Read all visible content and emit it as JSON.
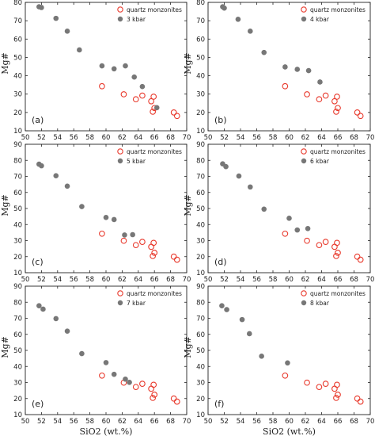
{
  "figure": {
    "colors": {
      "measured": "#e8392c",
      "model": "#777777",
      "axis": "#222222"
    }
  },
  "chart_data": [
    {
      "type": "scatter",
      "panel_label": "(a)",
      "xlim": [
        50,
        70
      ],
      "ylim": [
        10,
        80
      ],
      "xticks": [
        "50",
        "52",
        "54",
        "56",
        "58",
        "60",
        "62",
        "64",
        "66",
        "68",
        "70"
      ],
      "yticks": [
        "10",
        "20",
        "30",
        "40",
        "50",
        "60",
        "70",
        "80"
      ],
      "xlabel": "",
      "ylabel": "Mg#",
      "legend_position": "top-right",
      "series": [
        {
          "name": "quartz monzonites",
          "marker": "open-circle",
          "x": [
            59.5,
            62.2,
            63.7,
            64.5,
            65.6,
            65.9,
            65.8,
            66.0,
            68.4,
            68.8
          ],
          "y": [
            34.3,
            29.9,
            27.2,
            29.2,
            26.1,
            28.6,
            20.4,
            22.4,
            20.0,
            18.1
          ]
        },
        {
          "name": "3 kbar",
          "marker": "filled-circle",
          "x": [
            51.7,
            52.0,
            53.8,
            55.2,
            56.7,
            59.5,
            61.0,
            62.4,
            63.5,
            64.5,
            66.3
          ],
          "y": [
            77.6,
            77.2,
            71.3,
            64.3,
            54.1,
            45.4,
            43.8,
            45.4,
            39.3,
            34.1,
            22.6
          ]
        }
      ]
    },
    {
      "type": "scatter",
      "panel_label": "(b)",
      "xlim": [
        50,
        70
      ],
      "ylim": [
        10,
        80
      ],
      "xticks": [
        "50",
        "52",
        "54",
        "56",
        "58",
        "60",
        "62",
        "64",
        "66",
        "68",
        "70"
      ],
      "yticks": [
        "10",
        "20",
        "30",
        "40",
        "50",
        "60",
        "70",
        "80"
      ],
      "xlabel": "",
      "ylabel": "Mg#",
      "legend_position": "top-right",
      "series": [
        {
          "name": "quartz monzonites",
          "marker": "open-circle",
          "x": [
            59.5,
            62.2,
            63.7,
            64.5,
            65.6,
            65.9,
            65.8,
            66.0,
            68.4,
            68.8
          ],
          "y": [
            34.3,
            29.9,
            27.2,
            29.2,
            26.1,
            28.6,
            20.4,
            22.4,
            20.0,
            18.1
          ]
        },
        {
          "name": "4 kbar",
          "marker": "filled-circle",
          "x": [
            51.8,
            52.0,
            53.7,
            55.2,
            56.9,
            59.5,
            61.0,
            62.4,
            63.8
          ],
          "y": [
            77.6,
            76.9,
            70.8,
            64.3,
            52.7,
            44.8,
            43.5,
            42.8,
            36.6
          ]
        }
      ]
    },
    {
      "type": "scatter",
      "panel_label": "(c)",
      "xlim": [
        50,
        70
      ],
      "ylim": [
        10,
        90
      ],
      "xticks": [
        "50",
        "52",
        "54",
        "56",
        "58",
        "60",
        "62",
        "64",
        "66",
        "68",
        "70"
      ],
      "yticks": [
        "10",
        "20",
        "30",
        "40",
        "50",
        "60",
        "70",
        "80",
        "90"
      ],
      "xlabel": "",
      "ylabel": "Mg#",
      "legend_position": "top-right",
      "series": [
        {
          "name": "quartz monzonites",
          "marker": "open-circle",
          "x": [
            59.5,
            62.2,
            63.7,
            64.5,
            65.6,
            65.9,
            65.8,
            66.0,
            68.4,
            68.8
          ],
          "y": [
            34.3,
            29.9,
            27.2,
            29.2,
            26.1,
            28.6,
            20.4,
            22.4,
            20.0,
            18.1
          ]
        },
        {
          "name": "5 kbar",
          "marker": "filled-circle",
          "x": [
            51.7,
            52.0,
            53.8,
            55.2,
            57.0,
            60.0,
            61.0,
            62.3,
            63.3
          ],
          "y": [
            77.6,
            76.6,
            70.4,
            63.9,
            51.2,
            44.4,
            43.1,
            33.5,
            33.7
          ]
        }
      ]
    },
    {
      "type": "scatter",
      "panel_label": "(d)",
      "xlim": [
        50,
        70
      ],
      "ylim": [
        10,
        90
      ],
      "xticks": [
        "50",
        "52",
        "54",
        "56",
        "58",
        "60",
        "62",
        "64",
        "66",
        "68",
        "70"
      ],
      "yticks": [
        "10",
        "20",
        "30",
        "40",
        "50",
        "60",
        "70",
        "80",
        "90"
      ],
      "xlabel": "",
      "ylabel": "Mg#",
      "legend_position": "top-right",
      "series": [
        {
          "name": "quartz monzonites",
          "marker": "open-circle",
          "x": [
            59.5,
            62.2,
            63.7,
            64.5,
            65.6,
            65.9,
            65.8,
            66.0,
            68.4,
            68.8
          ],
          "y": [
            34.3,
            29.9,
            27.2,
            29.2,
            26.1,
            28.6,
            20.4,
            22.4,
            20.0,
            18.1
          ]
        },
        {
          "name": "6 kbar",
          "marker": "filled-circle",
          "x": [
            51.8,
            52.2,
            53.8,
            55.2,
            56.9,
            60.0,
            61.0,
            62.3
          ],
          "y": [
            77.8,
            76.1,
            70.2,
            63.4,
            49.6,
            43.9,
            36.6,
            37.5
          ]
        }
      ]
    },
    {
      "type": "scatter",
      "panel_label": "(e)",
      "xlim": [
        50,
        70
      ],
      "ylim": [
        10,
        90
      ],
      "xticks": [
        "50",
        "52",
        "54",
        "56",
        "58",
        "60",
        "62",
        "64",
        "66",
        "68",
        "70"
      ],
      "yticks": [
        "10",
        "20",
        "30",
        "40",
        "50",
        "60",
        "70",
        "80",
        "90"
      ],
      "xlabel": "SiO2 (wt.%)",
      "ylabel": "Mg#",
      "legend_position": "top-right",
      "series": [
        {
          "name": "quartz monzonites",
          "marker": "open-circle",
          "x": [
            59.5,
            62.2,
            63.7,
            64.5,
            65.6,
            65.9,
            65.8,
            66.0,
            68.4,
            68.8
          ],
          "y": [
            34.3,
            29.9,
            27.2,
            29.2,
            26.1,
            28.6,
            20.4,
            22.4,
            20.0,
            18.1
          ]
        },
        {
          "name": "7 kbar",
          "marker": "filled-circle",
          "x": [
            51.7,
            52.2,
            53.8,
            55.2,
            57.0,
            60.0,
            61.0,
            62.4,
            62.9
          ],
          "y": [
            77.8,
            75.7,
            69.8,
            62.0,
            48.0,
            42.4,
            35.1,
            32.1,
            30.1
          ]
        }
      ]
    },
    {
      "type": "scatter",
      "panel_label": "(f)",
      "xlim": [
        50,
        70
      ],
      "ylim": [
        10,
        90
      ],
      "xticks": [
        "50",
        "52",
        "54",
        "56",
        "58",
        "60",
        "62",
        "64",
        "66",
        "68",
        "70"
      ],
      "yticks": [
        "10",
        "20",
        "30",
        "40",
        "50",
        "60",
        "70",
        "80",
        "90"
      ],
      "xlabel": "SiO2 (wt.%)",
      "ylabel": "Mg#",
      "legend_position": "top-right",
      "series": [
        {
          "name": "quartz monzonites",
          "marker": "open-circle",
          "x": [
            59.5,
            62.2,
            63.7,
            64.5,
            65.6,
            65.9,
            65.8,
            66.0,
            68.4,
            68.8
          ],
          "y": [
            34.3,
            29.9,
            27.2,
            29.2,
            26.1,
            28.6,
            20.4,
            22.4,
            20.0,
            18.1
          ]
        },
        {
          "name": "8 kbar",
          "marker": "filled-circle",
          "x": [
            51.7,
            52.3,
            54.2,
            55.1,
            56.6,
            59.8
          ],
          "y": [
            77.8,
            75.4,
            69.2,
            60.4,
            46.4,
            42.2
          ]
        }
      ]
    }
  ]
}
